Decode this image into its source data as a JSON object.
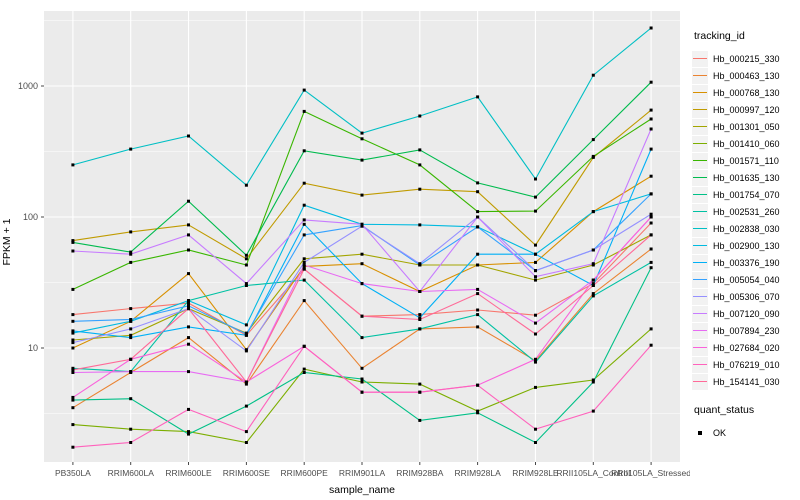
{
  "chart_data": {
    "type": "line",
    "title": "",
    "xlabel": "sample_name",
    "ylabel": "FPKM + 1",
    "y_scale": "log10",
    "y_ticks": [
      10,
      100,
      1000
    ],
    "y_tick_labels": [
      "10",
      "100",
      "1000"
    ],
    "y_minor": [
      3.162,
      31.62,
      316.2,
      3162
    ],
    "ylim": [
      1.3,
      3730
    ],
    "panel_bg": "#EBEBEB",
    "grid_color": "#FFFFFF",
    "point_color": "#000000",
    "axis_text_color": "#4D4D4D",
    "legend_position": "right",
    "categories": [
      "PB350LA",
      "RRIM600LA",
      "RRIM600LE",
      "RRIM600SE",
      "RRIM600PE",
      "RRIM901LA",
      "RRIM928BA",
      "RRIM928LA",
      "RRIM928LE",
      "RRII105LA_Control",
      "RRII105LA_Stressed"
    ],
    "series": [
      {
        "name": "Hb_000215_330",
        "color": "#F8766D",
        "values": [
          18,
          20,
          22,
          12.5,
          40,
          17.5,
          18,
          19.5,
          17.8,
          31,
          90
        ]
      },
      {
        "name": "Hb_000463_130",
        "color": "#EA8331",
        "values": [
          3.5,
          6.5,
          12,
          5.3,
          23,
          7,
          14,
          14.5,
          8,
          26,
          57
        ]
      },
      {
        "name": "Hb_000768_130",
        "color": "#D89000",
        "values": [
          10,
          16,
          37,
          9.7,
          42,
          44,
          27,
          43,
          45,
          110,
          205
        ]
      },
      {
        "name": "Hb_000997_120",
        "color": "#C09B00",
        "values": [
          66,
          77,
          87,
          48,
          181,
          147,
          163,
          156,
          61,
          285,
          655
        ]
      },
      {
        "name": "Hb_001301_050",
        "color": "#A3A500",
        "values": [
          11.5,
          12.5,
          20,
          13,
          48,
          52,
          43,
          43,
          33,
          43,
          73
        ]
      },
      {
        "name": "Hb_001410_060",
        "color": "#7CAE00",
        "values": [
          2.6,
          2.4,
          2.3,
          1.9,
          6.9,
          5.5,
          5.3,
          3.3,
          5,
          5.7,
          14
        ]
      },
      {
        "name": "Hb_001571_110",
        "color": "#39B600",
        "values": [
          28,
          45,
          56,
          43,
          640,
          395,
          250,
          110,
          111,
          290,
          560
        ]
      },
      {
        "name": "Hb_001635_130",
        "color": "#00BB4E",
        "values": [
          64,
          54,
          132,
          51,
          320,
          272,
          325,
          182,
          142,
          390,
          1070
        ]
      },
      {
        "name": "Hb_001754_070",
        "color": "#00C087",
        "values": [
          4.0,
          4.1,
          2.2,
          3.6,
          6.5,
          5.8,
          2.8,
          3.2,
          1.9,
          5.5,
          41
        ]
      },
      {
        "name": "Hb_002531_260",
        "color": "#00C1A3",
        "values": [
          7,
          6.6,
          23,
          30,
          33,
          12,
          14,
          18,
          7.8,
          25,
          45
        ]
      },
      {
        "name": "Hb_002838_030",
        "color": "#00BFC4",
        "values": [
          250,
          330,
          415,
          175,
          930,
          437,
          590,
          825,
          195,
          1210,
          2770
        ]
      },
      {
        "name": "Hb_002900_130",
        "color": "#00BAE0",
        "values": [
          13,
          16,
          23,
          15,
          123,
          88,
          87,
          84,
          52,
          110,
          150
        ]
      },
      {
        "name": "Hb_003376_190",
        "color": "#00B0F6",
        "values": [
          13.5,
          12,
          14.5,
          12.5,
          88,
          31,
          17,
          52,
          52,
          30,
          330
        ]
      },
      {
        "name": "Hb_005054_040",
        "color": "#35A2FF",
        "values": [
          16,
          16.5,
          21,
          12.8,
          73,
          86,
          43,
          84,
          39,
          56,
          150
        ]
      },
      {
        "name": "Hb_005306_070",
        "color": "#9590FF",
        "values": [
          11,
          14,
          20,
          9.5,
          45,
          85,
          44,
          100,
          39,
          56,
          105
        ]
      },
      {
        "name": "Hb_007120_090",
        "color": "#C77CFF",
        "values": [
          55,
          52,
          73,
          31,
          95,
          88,
          27,
          100,
          35,
          44,
          470
        ]
      },
      {
        "name": "Hb_007894_230",
        "color": "#E76BF3",
        "values": [
          6.5,
          6.6,
          6.6,
          5.5,
          43,
          31,
          27,
          28,
          15.5,
          33,
          100
        ]
      },
      {
        "name": "Hb_027684_020",
        "color": "#FA62DB",
        "values": [
          4.2,
          8.2,
          10.7,
          5.5,
          10.3,
          4.6,
          4.6,
          5.2,
          8.2,
          33,
          100
        ]
      },
      {
        "name": "Hb_076219_010",
        "color": "#FF62BC",
        "values": [
          1.75,
          1.9,
          3.4,
          2.3,
          10.3,
          4.6,
          4.6,
          5.2,
          2.4,
          3.3,
          10.5
        ]
      },
      {
        "name": "Hb_154141_030",
        "color": "#FF6A98",
        "values": [
          6.8,
          8.2,
          20,
          5.5,
          40,
          17.5,
          16.5,
          26,
          12.8,
          30,
          73
        ]
      }
    ]
  },
  "legend": {
    "tracking_title": "tracking_id",
    "quant_title": "quant_status",
    "quant_items": [
      {
        "label": "OK"
      }
    ]
  }
}
